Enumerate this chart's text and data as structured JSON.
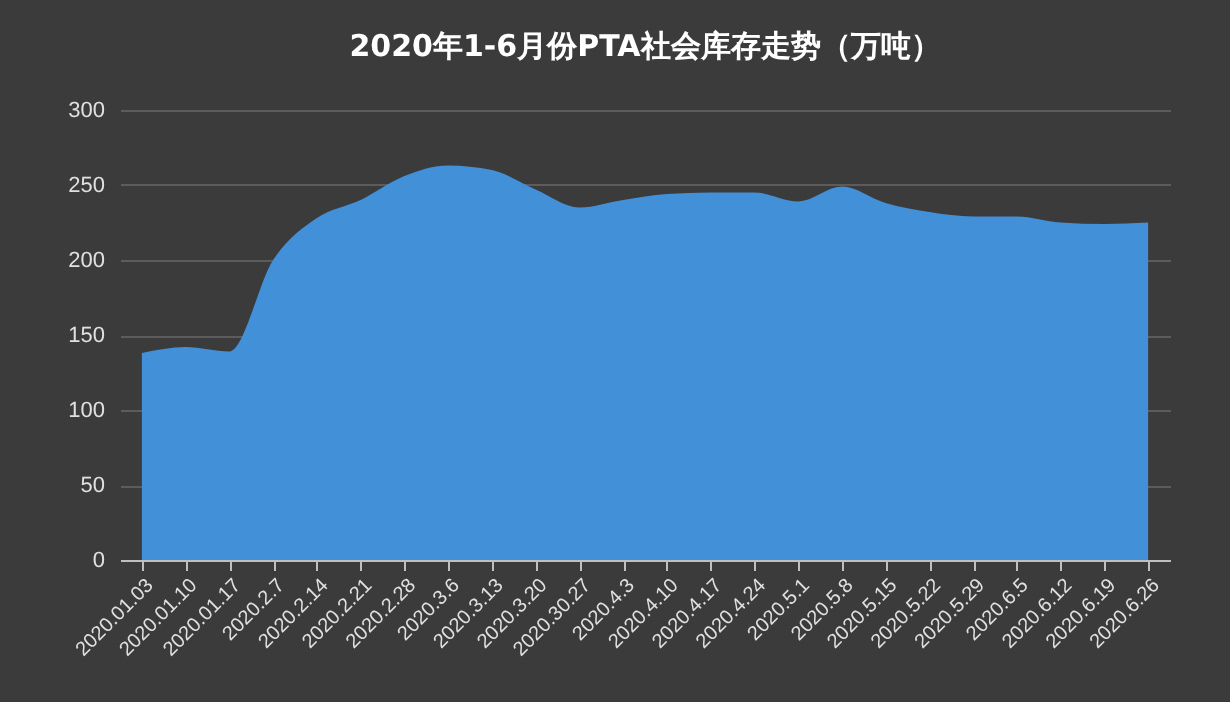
{
  "chart_data": {
    "type": "area",
    "title": "2020年1-6月份PTA社会库存走势（万吨）",
    "categories": [
      "2020.01.03",
      "2020.01.10",
      "2020.01.17",
      "2020.2.7",
      "2020.2.14",
      "2020.2.21",
      "2020.2.28",
      "2020.3.6",
      "2020.3.13",
      "2020.3.20",
      "2020.30.27",
      "2020.4.3",
      "2020.4.10",
      "2020.4.17",
      "2020.4.24",
      "2020.5.1",
      "2020.5.8",
      "2020.5.15",
      "2020.5.22",
      "2020.5.29",
      "2020.6.5",
      "2020.6.12",
      "2020.6.19",
      "2020.6.26"
    ],
    "series": [
      {
        "color": "#4290d8",
        "values": [
          138,
          142,
          139,
          200,
          228,
          240,
          256,
          263,
          260,
          247,
          235,
          240,
          244,
          245,
          245,
          239,
          249,
          238,
          232,
          229,
          229,
          225,
          224,
          225
        ]
      }
    ],
    "ylim": [
      0,
      300
    ],
    "yticks": [
      0,
      50,
      100,
      150,
      200,
      250,
      300
    ],
    "grid": "y"
  }
}
